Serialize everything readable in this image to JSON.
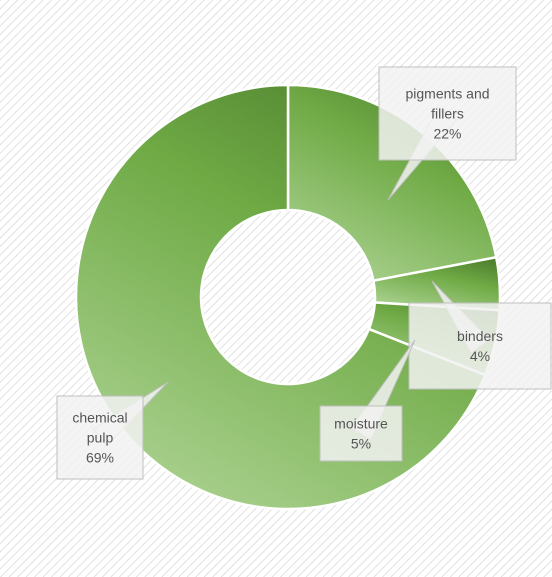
{
  "chart_data": {
    "type": "pie",
    "variant": "doughnut",
    "title": "",
    "categories": [
      "pigments and fillers",
      "binders",
      "moisture",
      "chemical pulp"
    ],
    "values": [
      22,
      4,
      5,
      69
    ],
    "value_labels": [
      "22%",
      "4%",
      "5%",
      "69%"
    ],
    "label_lines": [
      [
        "pigments and",
        "fillers",
        "22%"
      ],
      [
        "binders",
        "4%"
      ],
      [
        "moisture",
        "5%"
      ],
      [
        "chemical",
        "pulp",
        "69%"
      ]
    ],
    "start_angle_deg": 0,
    "direction": "clockwise",
    "legend": "none",
    "colors": {
      "gradient_dark": "#4e7f2e",
      "gradient_mid": "#6faa45",
      "gradient_light": "#a8d08d",
      "callout_fill": "#f2f2f2",
      "callout_border": "#bfbfbf",
      "label_text": "#555555",
      "separator": "#ffffff"
    },
    "background": "diagonal-hatch"
  }
}
